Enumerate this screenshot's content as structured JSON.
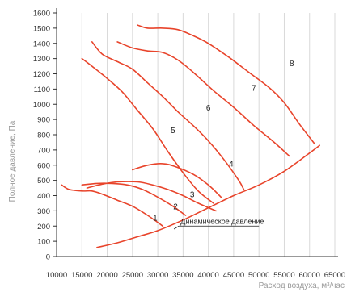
{
  "colors": {
    "curve": "#e8442b",
    "axis": "#333333",
    "grid": "#d9d9d9",
    "tick_text": "#333333",
    "axis_title": "#9a9a9a"
  },
  "chart_data": {
    "type": "line",
    "title": "",
    "xlabel": "Расход воздуха, м³/час",
    "ylabel": "Полное давление, Па",
    "xlim": [
      10000,
      65000
    ],
    "ylim": [
      0,
      1600
    ],
    "x_ticks": [
      "10000",
      "15000",
      "20000",
      "25000",
      "30000",
      "35000",
      "40000",
      "45000",
      "50000",
      "55000",
      "60000",
      "65000"
    ],
    "y_ticks": [
      "0",
      "100",
      "200",
      "300",
      "400",
      "500",
      "600",
      "700",
      "800",
      "900",
      "1000",
      "1100",
      "1200",
      "1300",
      "1400",
      "1500",
      "1600"
    ],
    "grid": "vertical",
    "series": [
      {
        "name": "1",
        "points": [
          [
            11000,
            470
          ],
          [
            12500,
            440
          ],
          [
            15000,
            430
          ],
          [
            17000,
            430
          ],
          [
            19000,
            410
          ],
          [
            22000,
            370
          ],
          [
            25000,
            330
          ],
          [
            28000,
            270
          ],
          [
            31000,
            200
          ]
        ]
      },
      {
        "name": "2",
        "points": [
          [
            15000,
            470
          ],
          [
            18000,
            480
          ],
          [
            21000,
            480
          ],
          [
            24000,
            470
          ],
          [
            27000,
            440
          ],
          [
            30000,
            390
          ],
          [
            33000,
            330
          ],
          [
            35500,
            270
          ]
        ]
      },
      {
        "name": "3",
        "points": [
          [
            16000,
            450
          ],
          [
            19000,
            475
          ],
          [
            22000,
            490
          ],
          [
            26000,
            490
          ],
          [
            29000,
            470
          ],
          [
            32000,
            440
          ],
          [
            35000,
            400
          ],
          [
            38000,
            350
          ],
          [
            41500,
            300
          ]
        ]
      },
      {
        "name": "4",
        "points": [
          [
            25000,
            570
          ],
          [
            28000,
            600
          ],
          [
            31000,
            610
          ],
          [
            33500,
            590
          ],
          [
            37000,
            540
          ],
          [
            40000,
            470
          ],
          [
            42500,
            390
          ]
        ]
      },
      {
        "name": "5",
        "points": [
          [
            15000,
            1300
          ],
          [
            17000,
            1250
          ],
          [
            20000,
            1170
          ],
          [
            23000,
            1080
          ],
          [
            26000,
            960
          ],
          [
            29000,
            840
          ],
          [
            32000,
            690
          ],
          [
            35000,
            550
          ],
          [
            38000,
            430
          ],
          [
            41000,
            350
          ]
        ]
      },
      {
        "name": "6",
        "points": [
          [
            17000,
            1410
          ],
          [
            19000,
            1330
          ],
          [
            22000,
            1280
          ],
          [
            25000,
            1230
          ],
          [
            28000,
            1140
          ],
          [
            31000,
            1050
          ],
          [
            34000,
            950
          ],
          [
            37000,
            860
          ],
          [
            40000,
            760
          ],
          [
            43000,
            640
          ],
          [
            46000,
            500
          ],
          [
            47000,
            440
          ]
        ]
      },
      {
        "name": "7",
        "points": [
          [
            22000,
            1410
          ],
          [
            25000,
            1370
          ],
          [
            28000,
            1350
          ],
          [
            31000,
            1340
          ],
          [
            34000,
            1290
          ],
          [
            37000,
            1210
          ],
          [
            41000,
            1090
          ],
          [
            45000,
            980
          ],
          [
            49000,
            860
          ],
          [
            53000,
            750
          ],
          [
            56000,
            660
          ]
        ]
      },
      {
        "name": "8",
        "points": [
          [
            26000,
            1520
          ],
          [
            28000,
            1500
          ],
          [
            31000,
            1500
          ],
          [
            34000,
            1490
          ],
          [
            37000,
            1450
          ],
          [
            40000,
            1400
          ],
          [
            44000,
            1310
          ],
          [
            48000,
            1210
          ],
          [
            52000,
            1110
          ],
          [
            55000,
            1010
          ],
          [
            58000,
            870
          ],
          [
            61000,
            740
          ]
        ]
      },
      {
        "name": "Динамическое давление",
        "points": [
          [
            18000,
            60
          ],
          [
            22000,
            90
          ],
          [
            26000,
            130
          ],
          [
            30000,
            170
          ],
          [
            35000,
            240
          ],
          [
            40000,
            320
          ],
          [
            45000,
            400
          ],
          [
            50000,
            470
          ],
          [
            55000,
            560
          ],
          [
            60000,
            680
          ],
          [
            62000,
            730
          ]
        ]
      }
    ],
    "curve_labels": [
      {
        "text": "1",
        "x": 29500,
        "y": 235
      },
      {
        "text": "2",
        "x": 33500,
        "y": 310
      },
      {
        "text": "3",
        "x": 36800,
        "y": 390
      },
      {
        "text": "4",
        "x": 44500,
        "y": 590
      },
      {
        "text": "5",
        "x": 33000,
        "y": 810
      },
      {
        "text": "6",
        "x": 40000,
        "y": 960
      },
      {
        "text": "7",
        "x": 49000,
        "y": 1090
      },
      {
        "text": "8",
        "x": 56500,
        "y": 1250
      }
    ],
    "annotation": {
      "text": "Динамическое давление",
      "x": 34500,
      "y": 200,
      "line_to_x": 50000,
      "leader_from_x": 33200,
      "leader_from_y": 180
    }
  }
}
